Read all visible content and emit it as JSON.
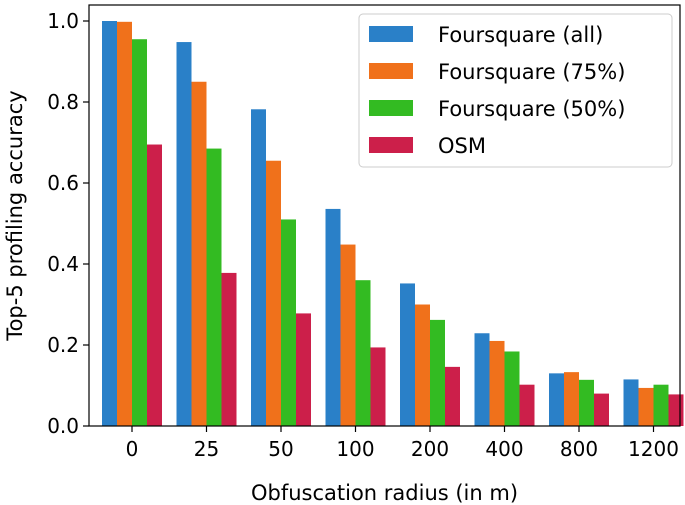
{
  "chart_data": {
    "type": "bar",
    "title": "",
    "xlabel": "Obfuscation radius (in m)",
    "ylabel": "Top-5 profiling accuracy",
    "categories": [
      "0",
      "25",
      "50",
      "100",
      "200",
      "400",
      "800",
      "1200"
    ],
    "ylim": [
      0,
      1.0
    ],
    "yticks": [
      "0.0",
      "0.2",
      "0.4",
      "0.6",
      "0.8",
      "1.0"
    ],
    "grid": false,
    "legend_position": "top-right",
    "series": [
      {
        "name": "Foursquare (all)",
        "color": "#2a80c8",
        "values": [
          1.0,
          0.948,
          0.782,
          0.536,
          0.352,
          0.229,
          0.13,
          0.115
        ]
      },
      {
        "name": "Foursquare (75%)",
        "color": "#f0711b",
        "values": [
          0.998,
          0.85,
          0.655,
          0.448,
          0.3,
          0.21,
          0.133,
          0.094
        ]
      },
      {
        "name": "Foursquare (50%)",
        "color": "#33bb22",
        "values": [
          0.955,
          0.685,
          0.51,
          0.36,
          0.262,
          0.184,
          0.114,
          0.102
        ]
      },
      {
        "name": "OSM",
        "color": "#cc1f4a",
        "values": [
          0.695,
          0.378,
          0.278,
          0.194,
          0.146,
          0.102,
          0.08,
          0.078
        ]
      }
    ]
  }
}
